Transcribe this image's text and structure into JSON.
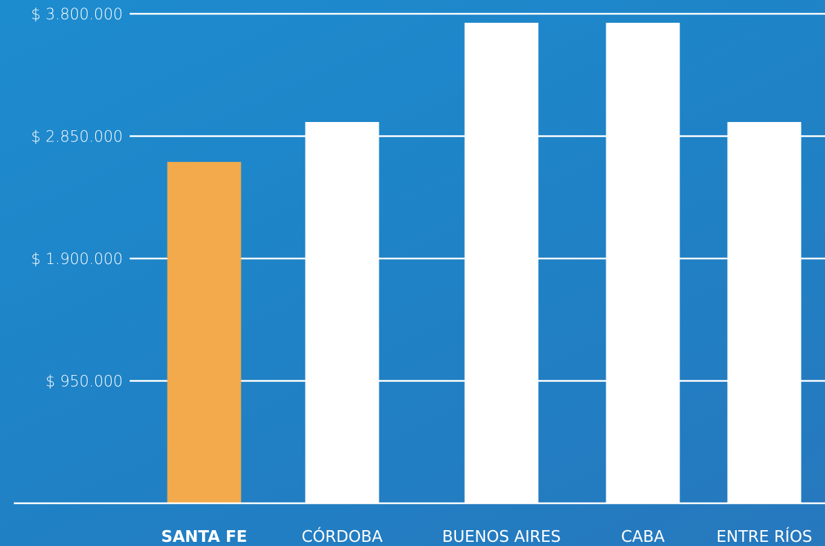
{
  "chart_data": {
    "type": "bar",
    "categories": [
      "SANTA FE",
      "CÓRDOBA",
      "BUENOS AIRES",
      "CABA",
      "ENTRE RÍOS"
    ],
    "values": [
      2650000,
      2960000,
      3730000,
      3730000,
      2960000
    ],
    "highlighted_category": "SANTA FE",
    "ylim": [
      0,
      3800000
    ],
    "yticks": [
      950000,
      1900000,
      2850000,
      3800000
    ],
    "ytick_labels": [
      "$ 950.000",
      "$ 1.900.000",
      "$ 2.850.000",
      "$ 3.800.000"
    ],
    "grid": true,
    "title": "",
    "xlabel": "",
    "ylabel": "",
    "colors": {
      "background": "#1f86c9",
      "highlight_bar": "#f2aa4c",
      "bar": "#ffffff",
      "gridline": "#ffffff",
      "text": "#ffffff"
    }
  }
}
